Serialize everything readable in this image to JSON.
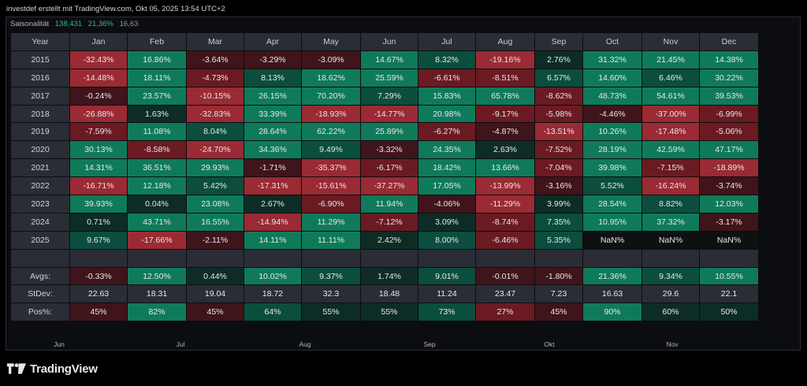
{
  "header": {
    "text": "investdef erstellt mit TradingView.com, Okt 05, 2025 13:54 UTC+2"
  },
  "indicator": {
    "name": "Saisonalität",
    "values": [
      "138,431",
      "21,36%",
      "16,63"
    ]
  },
  "colors": {
    "strong_positive": "#0f7a5a",
    "positive": "#0b4e3d",
    "weak_positive": "#0d2c25",
    "weak_negative": "#3f141a",
    "negative": "#6b1a22",
    "strong_negative": "#9a2a33",
    "header_bg": "#2a2d35"
  },
  "table": {
    "headers": [
      "Year",
      "Jan",
      "Feb",
      "Mar",
      "Apr",
      "May",
      "Jun",
      "Jul",
      "Aug",
      "Sep",
      "Oct",
      "Nov",
      "Dec"
    ],
    "rows": [
      {
        "label": "2015",
        "cells": [
          [
            "-32.43%",
            -3
          ],
          [
            "16.86%",
            3
          ],
          [
            "-3.64%",
            -1
          ],
          [
            "-3.29%",
            -1
          ],
          [
            "-3.09%",
            -1
          ],
          [
            "14.67%",
            3
          ],
          [
            "8.32%",
            2
          ],
          [
            "-19.16%",
            -3
          ],
          [
            "2.76%",
            1
          ],
          [
            "31.32%",
            3
          ],
          [
            "21.45%",
            3
          ],
          [
            "14.38%",
            3
          ]
        ]
      },
      {
        "label": "2016",
        "cells": [
          [
            "-14.48%",
            -3
          ],
          [
            "18.11%",
            3
          ],
          [
            "-4.73%",
            -2
          ],
          [
            "8.13%",
            2
          ],
          [
            "18.62%",
            3
          ],
          [
            "25.59%",
            3
          ],
          [
            "-6.61%",
            -2
          ],
          [
            "-8.51%",
            -2
          ],
          [
            "6.57%",
            2
          ],
          [
            "14.60%",
            3
          ],
          [
            "6.46%",
            2
          ],
          [
            "30.22%",
            3
          ]
        ]
      },
      {
        "label": "2017",
        "cells": [
          [
            "-0.24%",
            -1
          ],
          [
            "23.57%",
            3
          ],
          [
            "-10.15%",
            -3
          ],
          [
            "26.15%",
            3
          ],
          [
            "70.20%",
            3
          ],
          [
            "7.29%",
            2
          ],
          [
            "15.83%",
            3
          ],
          [
            "65.78%",
            3
          ],
          [
            "-8.62%",
            -2
          ],
          [
            "48.73%",
            3
          ],
          [
            "54.61%",
            3
          ],
          [
            "39.53%",
            3
          ]
        ]
      },
      {
        "label": "2018",
        "cells": [
          [
            "-26.88%",
            -3
          ],
          [
            "1.63%",
            1
          ],
          [
            "-32.83%",
            -3
          ],
          [
            "33.39%",
            3
          ],
          [
            "-18.93%",
            -3
          ],
          [
            "-14.77%",
            -3
          ],
          [
            "20.98%",
            3
          ],
          [
            "-9.17%",
            -2
          ],
          [
            "-5.98%",
            -2
          ],
          [
            "-4.46%",
            -1
          ],
          [
            "-37.00%",
            -3
          ],
          [
            "-6.99%",
            -2
          ]
        ]
      },
      {
        "label": "2019",
        "cells": [
          [
            "-7.59%",
            -2
          ],
          [
            "11.08%",
            3
          ],
          [
            "8.04%",
            2
          ],
          [
            "28.64%",
            3
          ],
          [
            "62.22%",
            3
          ],
          [
            "25.89%",
            3
          ],
          [
            "-6.27%",
            -2
          ],
          [
            "-4.87%",
            -1
          ],
          [
            "-13.51%",
            -3
          ],
          [
            "10.26%",
            3
          ],
          [
            "-17.48%",
            -3
          ],
          [
            "-5.06%",
            -2
          ]
        ]
      },
      {
        "label": "2020",
        "cells": [
          [
            "30.13%",
            3
          ],
          [
            "-8.58%",
            -2
          ],
          [
            "-24.70%",
            -3
          ],
          [
            "34.36%",
            3
          ],
          [
            "9.49%",
            2
          ],
          [
            "-3.32%",
            -1
          ],
          [
            "24.35%",
            3
          ],
          [
            "2.63%",
            1
          ],
          [
            "-7.52%",
            -2
          ],
          [
            "28.19%",
            3
          ],
          [
            "42.59%",
            3
          ],
          [
            "47.17%",
            3
          ]
        ]
      },
      {
        "label": "2021",
        "cells": [
          [
            "14.31%",
            3
          ],
          [
            "36.51%",
            3
          ],
          [
            "29.93%",
            3
          ],
          [
            "-1.71%",
            -1
          ],
          [
            "-35.37%",
            -3
          ],
          [
            "-6.17%",
            -2
          ],
          [
            "18.42%",
            3
          ],
          [
            "13.66%",
            3
          ],
          [
            "-7.04%",
            -2
          ],
          [
            "39.98%",
            3
          ],
          [
            "-7.15%",
            -2
          ],
          [
            "-18.89%",
            -3
          ]
        ]
      },
      {
        "label": "2022",
        "cells": [
          [
            "-16.71%",
            -3
          ],
          [
            "12.18%",
            3
          ],
          [
            "5.42%",
            2
          ],
          [
            "-17.31%",
            -3
          ],
          [
            "-15.61%",
            -3
          ],
          [
            "-37.27%",
            -3
          ],
          [
            "17.05%",
            3
          ],
          [
            "-13.99%",
            -3
          ],
          [
            "-3.16%",
            -1
          ],
          [
            "5.52%",
            2
          ],
          [
            "-16.24%",
            -3
          ],
          [
            "-3.74%",
            -1
          ]
        ]
      },
      {
        "label": "2023",
        "cells": [
          [
            "39.93%",
            3
          ],
          [
            "0.04%",
            1
          ],
          [
            "23.08%",
            3
          ],
          [
            "2.67%",
            1
          ],
          [
            "-6.90%",
            -2
          ],
          [
            "11.94%",
            3
          ],
          [
            "-4.06%",
            -1
          ],
          [
            "-11.29%",
            -3
          ],
          [
            "3.99%",
            1
          ],
          [
            "28.54%",
            3
          ],
          [
            "8.82%",
            2
          ],
          [
            "12.03%",
            3
          ]
        ]
      },
      {
        "label": "2024",
        "cells": [
          [
            "0.71%",
            1
          ],
          [
            "43.71%",
            3
          ],
          [
            "16.55%",
            3
          ],
          [
            "-14.94%",
            -3
          ],
          [
            "11.29%",
            3
          ],
          [
            "-7.12%",
            -2
          ],
          [
            "3.09%",
            1
          ],
          [
            "-8.74%",
            -2
          ],
          [
            "7.35%",
            2
          ],
          [
            "10.95%",
            3
          ],
          [
            "37.32%",
            3
          ],
          [
            "-3.17%",
            -1
          ]
        ]
      },
      {
        "label": "2025",
        "cells": [
          [
            "9.67%",
            2
          ],
          [
            "-17.66%",
            -3
          ],
          [
            "-2.11%",
            -1
          ],
          [
            "14.11%",
            3
          ],
          [
            "11.11%",
            3
          ],
          [
            "2.42%",
            1
          ],
          [
            "8.00%",
            2
          ],
          [
            "-6.46%",
            -2
          ],
          [
            "5.35%",
            2
          ],
          [
            "NaN%",
            0
          ],
          [
            "NaN%",
            0
          ],
          [
            "NaN%",
            0
          ]
        ]
      }
    ],
    "stats": [
      {
        "label": "Avgs:",
        "cells": [
          [
            "-0.33%",
            -1
          ],
          [
            "12.50%",
            3
          ],
          [
            "0.44%",
            1
          ],
          [
            "10.02%",
            3
          ],
          [
            "9.37%",
            2
          ],
          [
            "1.74%",
            1
          ],
          [
            "9.01%",
            2
          ],
          [
            "-0.01%",
            -1
          ],
          [
            "-1.80%",
            -1
          ],
          [
            "21.36%",
            3
          ],
          [
            "9.34%",
            2
          ],
          [
            "10.55%",
            3
          ]
        ]
      },
      {
        "label": "StDev:",
        "cells": [
          [
            "22.63",
            -9
          ],
          [
            "18.31",
            -9
          ],
          [
            "19.04",
            -9
          ],
          [
            "18.72",
            -9
          ],
          [
            "32.3",
            -9
          ],
          [
            "18.48",
            -9
          ],
          [
            "11.24",
            -9
          ],
          [
            "23.47",
            -9
          ],
          [
            "7.23",
            -9
          ],
          [
            "16.63",
            -9
          ],
          [
            "29.6",
            -9
          ],
          [
            "22.1",
            -9
          ]
        ]
      },
      {
        "label": "Pos%:",
        "cells": [
          [
            "45%",
            -1
          ],
          [
            "82%",
            3
          ],
          [
            "45%",
            -1
          ],
          [
            "64%",
            2
          ],
          [
            "55%",
            1
          ],
          [
            "55%",
            1
          ],
          [
            "73%",
            2
          ],
          [
            "27%",
            -2
          ],
          [
            "45%",
            -1
          ],
          [
            "90%",
            3
          ],
          [
            "60%",
            1
          ],
          [
            "50%",
            1
          ]
        ]
      }
    ]
  },
  "time_axis": {
    "labels": [
      "Jun",
      "Jul",
      "Aug",
      "Sep",
      "Okt",
      "Nov"
    ]
  },
  "brand": {
    "name": "TradingView",
    "icon": "tradingview-logo-icon"
  }
}
